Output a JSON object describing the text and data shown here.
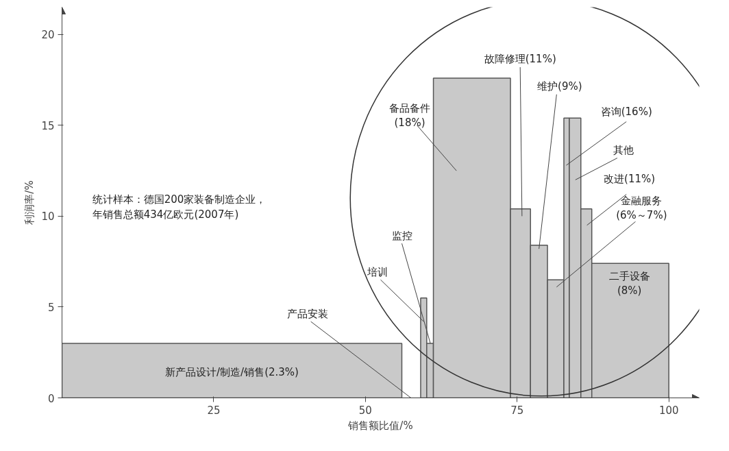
{
  "chart_data": {
    "type": "histogram",
    "xlabel": "销售额比值/%",
    "ylabel": "利润率/%",
    "bins": [
      0,
      56,
      59.1,
      60.1,
      61.2,
      73.9,
      77.2,
      80,
      82.7,
      83.6,
      85.5,
      87.3,
      100
    ],
    "values": [
      3,
      0,
      5.5,
      3,
      17.6,
      10.4,
      8.4,
      6.5,
      15.4,
      15.4,
      10.4,
      7.4
    ],
    "color": "#c9c9c9",
    "xlim": [
      0,
      105
    ],
    "ylim": [
      0,
      21.5
    ],
    "xticks": [
      25,
      50,
      75,
      100
    ],
    "yticks": [
      0,
      5,
      10,
      15,
      20
    ],
    "grid": false,
    "annotations": [
      "新产品设计/制造/销售(2.3%)",
      {
        "text": "产品安装",
        "x": 57.5,
        "y": 0
      },
      {
        "text": "培训",
        "x": 59.6,
        "y": 4.2
      },
      {
        "text": "监控",
        "x": 60.7,
        "y": 3
      },
      "备品备件\n(18%)",
      "故障修理(11%)",
      {
        "text": "维护(9%)",
        "x": 78.6,
        "y": 8.2
      },
      {
        "text": "咨询(16%)",
        "x": 83.1,
        "y": 12.8
      },
      "其他",
      "改进(11%)",
      "金融服务\n(6%～7%)",
      "二手设备\n(8%)",
      "统计样本：德国200家装备制造企业，年销售总额434亿欧元(2007年)"
    ]
  }
}
